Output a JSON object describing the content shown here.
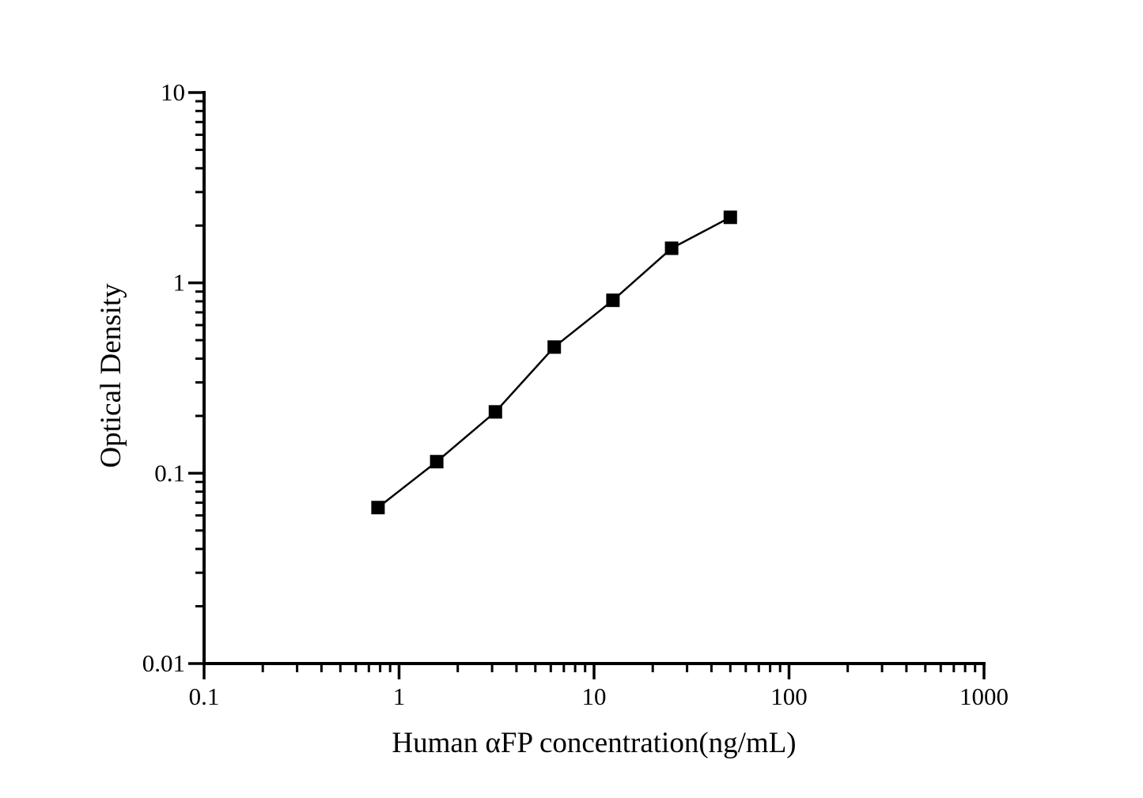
{
  "page": {
    "background_color": "#ffffff"
  },
  "chart_data": {
    "type": "line",
    "title": "",
    "xlabel": "Human αFP concentration(ng/mL)",
    "ylabel": "Optical Density",
    "x_scale": "log",
    "y_scale": "log",
    "xlim": [
      0.1,
      1000
    ],
    "ylim": [
      0.01,
      10
    ],
    "grid": false,
    "legend": "none",
    "axis_color": "#000000",
    "line_color": "#000000",
    "marker": "filled-square",
    "marker_color": "#000000",
    "x_ticks": [
      {
        "value": 0.1,
        "label": "0.1"
      },
      {
        "value": 1,
        "label": "1"
      },
      {
        "value": 10,
        "label": "10"
      },
      {
        "value": 100,
        "label": "100"
      },
      {
        "value": 1000,
        "label": "1000"
      }
    ],
    "y_ticks": [
      {
        "value": 0.01,
        "label": "0.01"
      },
      {
        "value": 0.1,
        "label": "0.1"
      },
      {
        "value": 1,
        "label": "1"
      },
      {
        "value": 10,
        "label": "10"
      }
    ],
    "series": [
      {
        "x": [
          0.78,
          1.56,
          3.12,
          6.25,
          12.5,
          25,
          50
        ],
        "y": [
          0.066,
          0.115,
          0.21,
          0.46,
          0.81,
          1.52,
          2.21
        ]
      }
    ]
  }
}
